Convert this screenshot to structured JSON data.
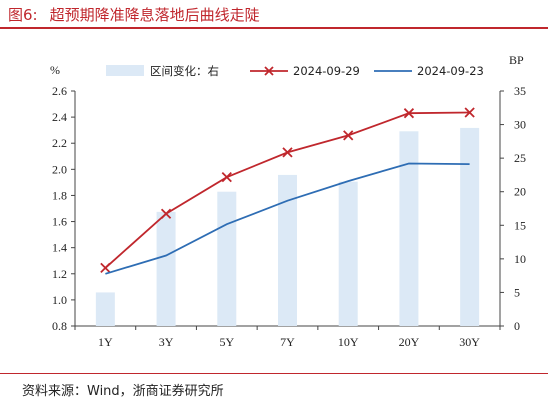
{
  "figure": {
    "number": "图6:",
    "title": "超预期降准降息落地后曲线走陡",
    "source": "资料来源：Wind，浙商证券研究所"
  },
  "colors": {
    "title_red": "#c0272d",
    "bar": "#dce9f6",
    "line_red": "#c0272d",
    "line_blue": "#2e6db4"
  },
  "chart_data": {
    "type": "bar",
    "categories": [
      "1Y",
      "3Y",
      "5Y",
      "7Y",
      "10Y",
      "20Y",
      "30Y"
    ],
    "left_axis": {
      "unit": "%",
      "ylim": [
        0.8,
        2.6
      ],
      "ticks": [
        "0.8",
        "1.0",
        "1.2",
        "1.4",
        "1.6",
        "1.8",
        "2.0",
        "2.2",
        "2.4",
        "2.6"
      ]
    },
    "right_axis": {
      "unit": "BP",
      "ylim": [
        0,
        35
      ],
      "ticks": [
        "0",
        "5",
        "10",
        "15",
        "20",
        "25",
        "30",
        "35"
      ]
    },
    "series": [
      {
        "name": "区间变化：右",
        "type": "bar",
        "axis": "right",
        "values": [
          5,
          17,
          20,
          22.5,
          21.5,
          29,
          29.5
        ]
      },
      {
        "name": "2024-09-29",
        "type": "line",
        "axis": "left",
        "marker": "x",
        "values": [
          1.245,
          1.66,
          1.94,
          2.13,
          2.26,
          2.43,
          2.435
        ]
      },
      {
        "name": "2024-09-23",
        "type": "line",
        "axis": "left",
        "marker": "none",
        "values": [
          1.2,
          1.34,
          1.58,
          1.76,
          1.91,
          2.045,
          2.04
        ]
      }
    ],
    "legend_position": "top",
    "grid": false
  }
}
